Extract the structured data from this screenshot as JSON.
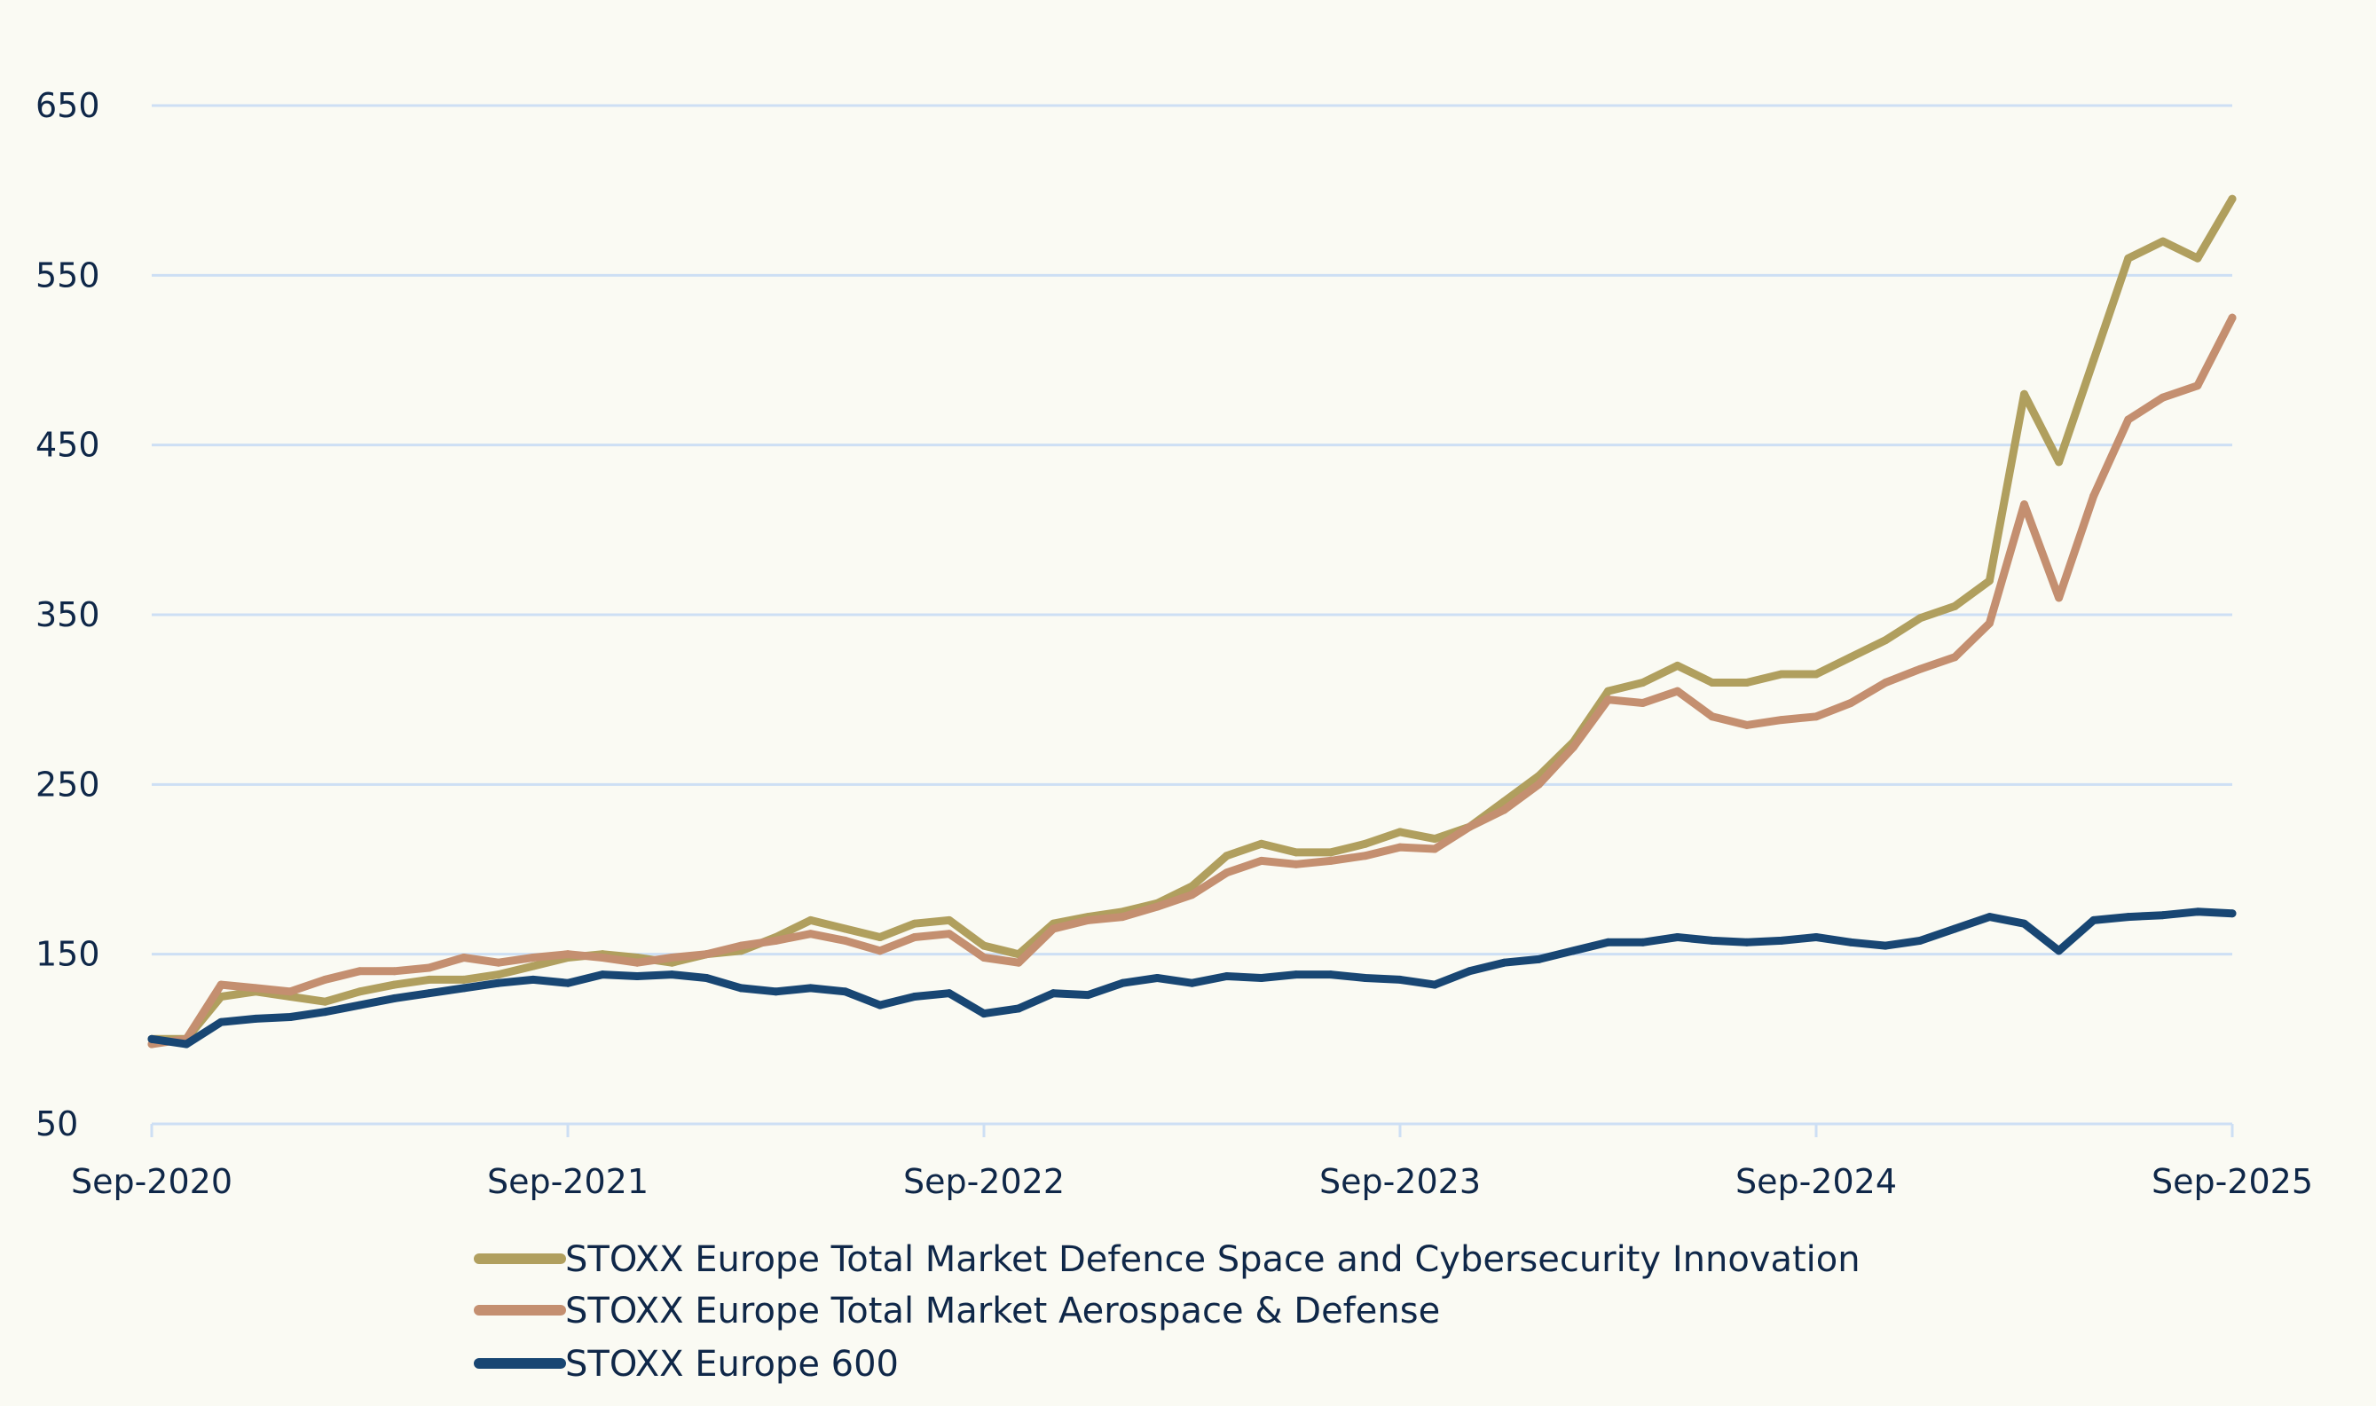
{
  "chart_data": {
    "type": "line",
    "title": "",
    "xlabel": "",
    "ylabel": "",
    "ylim": [
      50,
      650
    ],
    "yticks": [
      "50",
      "150",
      "250",
      "350",
      "450",
      "550",
      "650"
    ],
    "xticks": [
      "Sep-2020",
      "Sep-2021",
      "Sep-2022",
      "Sep-2023",
      "Sep-2024",
      "Sep-2025"
    ],
    "grid": true,
    "legend_position": "bottom",
    "x": [
      "Sep-2020",
      "Oct-2020",
      "Nov-2020",
      "Dec-2020",
      "Jan-2021",
      "Feb-2021",
      "Mar-2021",
      "Apr-2021",
      "May-2021",
      "Jun-2021",
      "Jul-2021",
      "Aug-2021",
      "Sep-2021",
      "Oct-2021",
      "Nov-2021",
      "Dec-2021",
      "Jan-2022",
      "Feb-2022",
      "Mar-2022",
      "Apr-2022",
      "May-2022",
      "Jun-2022",
      "Jul-2022",
      "Aug-2022",
      "Sep-2022",
      "Oct-2022",
      "Nov-2022",
      "Dec-2022",
      "Jan-2023",
      "Feb-2023",
      "Mar-2023",
      "Apr-2023",
      "May-2023",
      "Jun-2023",
      "Jul-2023",
      "Aug-2023",
      "Sep-2023",
      "Oct-2023",
      "Nov-2023",
      "Dec-2023",
      "Jan-2024",
      "Feb-2024",
      "Mar-2024",
      "Apr-2024",
      "May-2024",
      "Jun-2024",
      "Jul-2024",
      "Aug-2024",
      "Sep-2024",
      "Oct-2024",
      "Nov-2024",
      "Dec-2024",
      "Jan-2025",
      "Feb-2025",
      "Mar-2025",
      "Apr-2025",
      "May-2025",
      "Jun-2025",
      "Jul-2025",
      "Aug-2025",
      "Sep-2025"
    ],
    "series": [
      {
        "name": "STOXX Europe Total Market Defence Space and Cybersecurity Innovation",
        "color": "#b09f5e",
        "values": [
          100,
          100,
          125,
          128,
          125,
          122,
          128,
          132,
          135,
          135,
          138,
          143,
          148,
          150,
          148,
          145,
          150,
          152,
          160,
          170,
          165,
          160,
          168,
          170,
          155,
          150,
          168,
          172,
          175,
          180,
          190,
          208,
          215,
          210,
          210,
          215,
          222,
          218,
          225,
          240,
          255,
          275,
          305,
          310,
          320,
          310,
          310,
          315,
          315,
          325,
          335,
          348,
          355,
          370,
          480,
          440,
          500,
          560,
          570,
          560,
          595
        ]
      },
      {
        "name": "STOXX Europe Total Market Aerospace & Defense",
        "color": "#c48f70",
        "values": [
          97,
          100,
          132,
          130,
          128,
          135,
          140,
          140,
          142,
          148,
          145,
          148,
          150,
          148,
          145,
          148,
          150,
          155,
          158,
          162,
          158,
          152,
          160,
          162,
          148,
          145,
          165,
          170,
          172,
          178,
          185,
          198,
          205,
          203,
          205,
          208,
          213,
          212,
          225,
          235,
          250,
          272,
          300,
          298,
          305,
          290,
          285,
          288,
          290,
          298,
          310,
          318,
          325,
          345,
          415,
          360,
          420,
          465,
          478,
          485,
          525
        ]
      },
      {
        "name": "STOXX Europe 600",
        "color": "#184673",
        "values": [
          100,
          97,
          110,
          112,
          113,
          116,
          120,
          124,
          127,
          130,
          133,
          135,
          133,
          138,
          137,
          138,
          136,
          130,
          128,
          130,
          128,
          120,
          125,
          127,
          115,
          118,
          127,
          126,
          133,
          136,
          133,
          137,
          136,
          138,
          138,
          136,
          135,
          132,
          140,
          145,
          147,
          152,
          157,
          157,
          160,
          158,
          157,
          158,
          160,
          157,
          155,
          158,
          165,
          172,
          168,
          152,
          170,
          172,
          173,
          175,
          174
        ]
      }
    ]
  },
  "colors": {
    "background": "#fafaf3",
    "grid": "#cddff4",
    "text": "#0f2748"
  }
}
